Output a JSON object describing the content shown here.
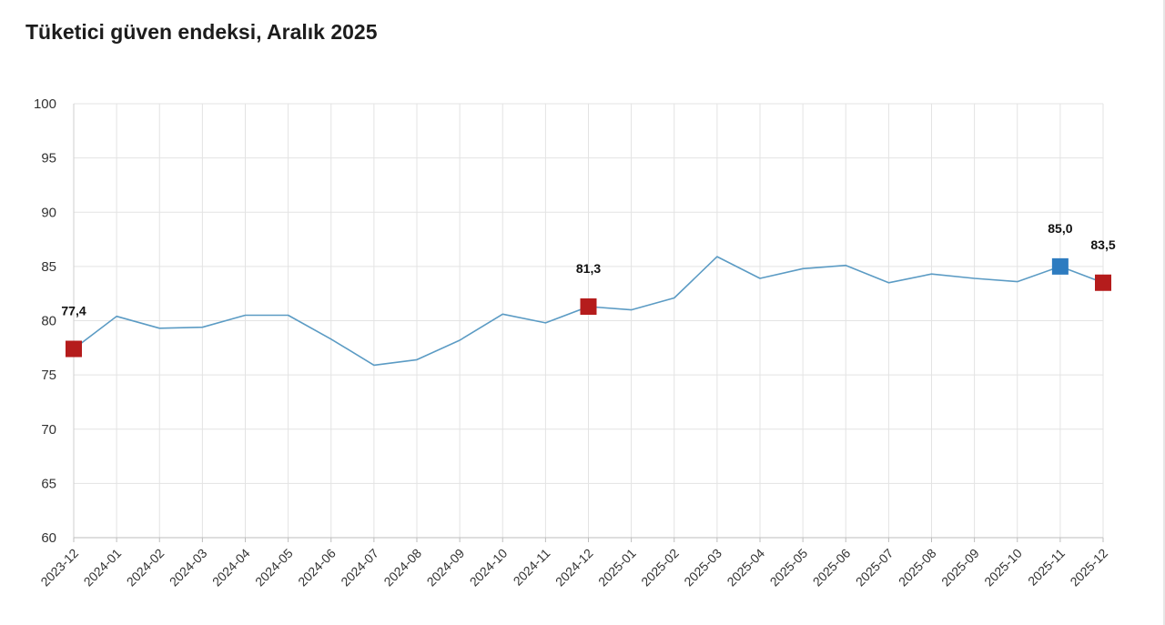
{
  "chart_data": {
    "type": "line",
    "title": "Tüketici güven endeksi, Aralık 2025",
    "xlabel": "",
    "ylabel": "",
    "ylim": [
      60,
      100
    ],
    "yticks": [
      "100",
      "95",
      "90",
      "85",
      "80",
      "75",
      "70",
      "65",
      "60"
    ],
    "grid": true,
    "legend": "none",
    "categories": [
      "2023-12",
      "2024-01",
      "2024-02",
      "2024-03",
      "2024-04",
      "2024-05",
      "2024-06",
      "2024-07",
      "2024-08",
      "2024-09",
      "2024-10",
      "2024-11",
      "2024-12",
      "2025-01",
      "2025-02",
      "2025-03",
      "2025-04",
      "2025-05",
      "2025-06",
      "2025-07",
      "2025-08",
      "2025-09",
      "2025-10",
      "2025-11",
      "2025-12"
    ],
    "series": [
      {
        "color": "#5b9bc4",
        "values": [
          77.4,
          80.4,
          79.3,
          79.4,
          80.5,
          80.5,
          78.3,
          75.9,
          76.4,
          78.2,
          80.6,
          79.8,
          81.3,
          81.0,
          82.1,
          85.9,
          83.9,
          84.8,
          85.1,
          83.5,
          84.3,
          83.9,
          83.6,
          85.0,
          83.5
        ]
      }
    ],
    "highlights": [
      {
        "category": "2023-12",
        "label": "77,4",
        "color": "#b51c1c"
      },
      {
        "category": "2024-12",
        "label": "81,3",
        "color": "#b51c1c"
      },
      {
        "category": "2025-11",
        "label": "85,0",
        "color": "#2e7cc0"
      },
      {
        "category": "2025-12",
        "label": "83,5",
        "color": "#b51c1c"
      }
    ]
  }
}
